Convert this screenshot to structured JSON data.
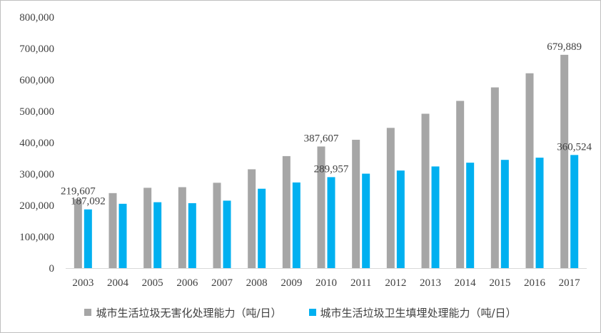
{
  "chart_data": {
    "type": "bar",
    "categories": [
      "2003",
      "2004",
      "2005",
      "2006",
      "2007",
      "2008",
      "2009",
      "2010",
      "2011",
      "2012",
      "2013",
      "2014",
      "2015",
      "2016",
      "2017"
    ],
    "series": [
      {
        "name": "城市生活垃圾无害化处理能力（吨/日）",
        "color": "#a6a6a6",
        "values": [
          219607,
          239000,
          256000,
          258000,
          272000,
          315000,
          357000,
          387607,
          409000,
          447000,
          492000,
          533000,
          576000,
          621000,
          679889
        ]
      },
      {
        "name": "城市生活垃圾卫生填埋处理能力（吨/日）",
        "color": "#00b0f0",
        "values": [
          187092,
          205000,
          210000,
          207000,
          215000,
          253000,
          273000,
          289957,
          301000,
          311000,
          324000,
          336000,
          345000,
          352000,
          360524
        ]
      }
    ],
    "data_labels": [
      {
        "series": 0,
        "index": 0,
        "text": "219,607"
      },
      {
        "series": 1,
        "index": 0,
        "text": "187,092"
      },
      {
        "series": 0,
        "index": 7,
        "text": "387,607"
      },
      {
        "series": 1,
        "index": 7,
        "text": "289,957"
      },
      {
        "series": 0,
        "index": 14,
        "text": "679,889"
      },
      {
        "series": 1,
        "index": 14,
        "text": "360,524"
      }
    ],
    "yticks": [
      "0",
      "100,000",
      "200,000",
      "300,000",
      "400,000",
      "500,000",
      "600,000",
      "700,000",
      "800,000"
    ],
    "ylim": [
      0,
      800000
    ],
    "grid": false,
    "legend_position": "bottom"
  }
}
